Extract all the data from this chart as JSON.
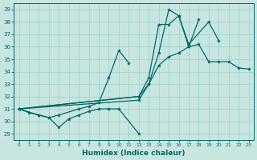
{
  "xlabel": "Humidex (Indice chaleur)",
  "background_color": "#c8e6e0",
  "grid_color": "#9ecec8",
  "line_color": "#006868",
  "xlim": [
    -0.5,
    23.5
  ],
  "ylim": [
    28.5,
    39.5
  ],
  "yticks": [
    29,
    30,
    31,
    32,
    33,
    34,
    35,
    36,
    37,
    38,
    39
  ],
  "xticks": [
    0,
    1,
    2,
    3,
    4,
    5,
    6,
    7,
    8,
    9,
    10,
    11,
    12,
    13,
    14,
    15,
    16,
    17,
    18,
    19,
    20,
    21,
    22,
    23
  ],
  "lines": [
    [
      0,
      31.0,
      1,
      30.7,
      2,
      30.5,
      3,
      30.3,
      4,
      29.5,
      5,
      30.2,
      6,
      30.5,
      7,
      30.8,
      8,
      31.0,
      9,
      31.0,
      10,
      31.0,
      12,
      29.0
    ],
    [
      0,
      31.0,
      2,
      30.5,
      3,
      30.3,
      4,
      30.5,
      6,
      31.0,
      7,
      31.2,
      8,
      31.5,
      9,
      33.5,
      10,
      35.7,
      11,
      34.7
    ],
    [
      0,
      31.0,
      12,
      31.7,
      13,
      33.0,
      14,
      35.5,
      15,
      39.0,
      16,
      38.5,
      17,
      36.0,
      18,
      38.2
    ],
    [
      0,
      31.0,
      12,
      32.0,
      13,
      33.5,
      14,
      37.8,
      15,
      37.8,
      16,
      38.5,
      17,
      36.2,
      19,
      38.0,
      20,
      36.5
    ],
    [
      0,
      31.0,
      12,
      32.0,
      13,
      33.0,
      14,
      34.5,
      15,
      35.2,
      16,
      35.5,
      17,
      36.0,
      18,
      36.2,
      19,
      34.8,
      20,
      34.8,
      21,
      34.8,
      22,
      34.3,
      23,
      34.2
    ]
  ]
}
